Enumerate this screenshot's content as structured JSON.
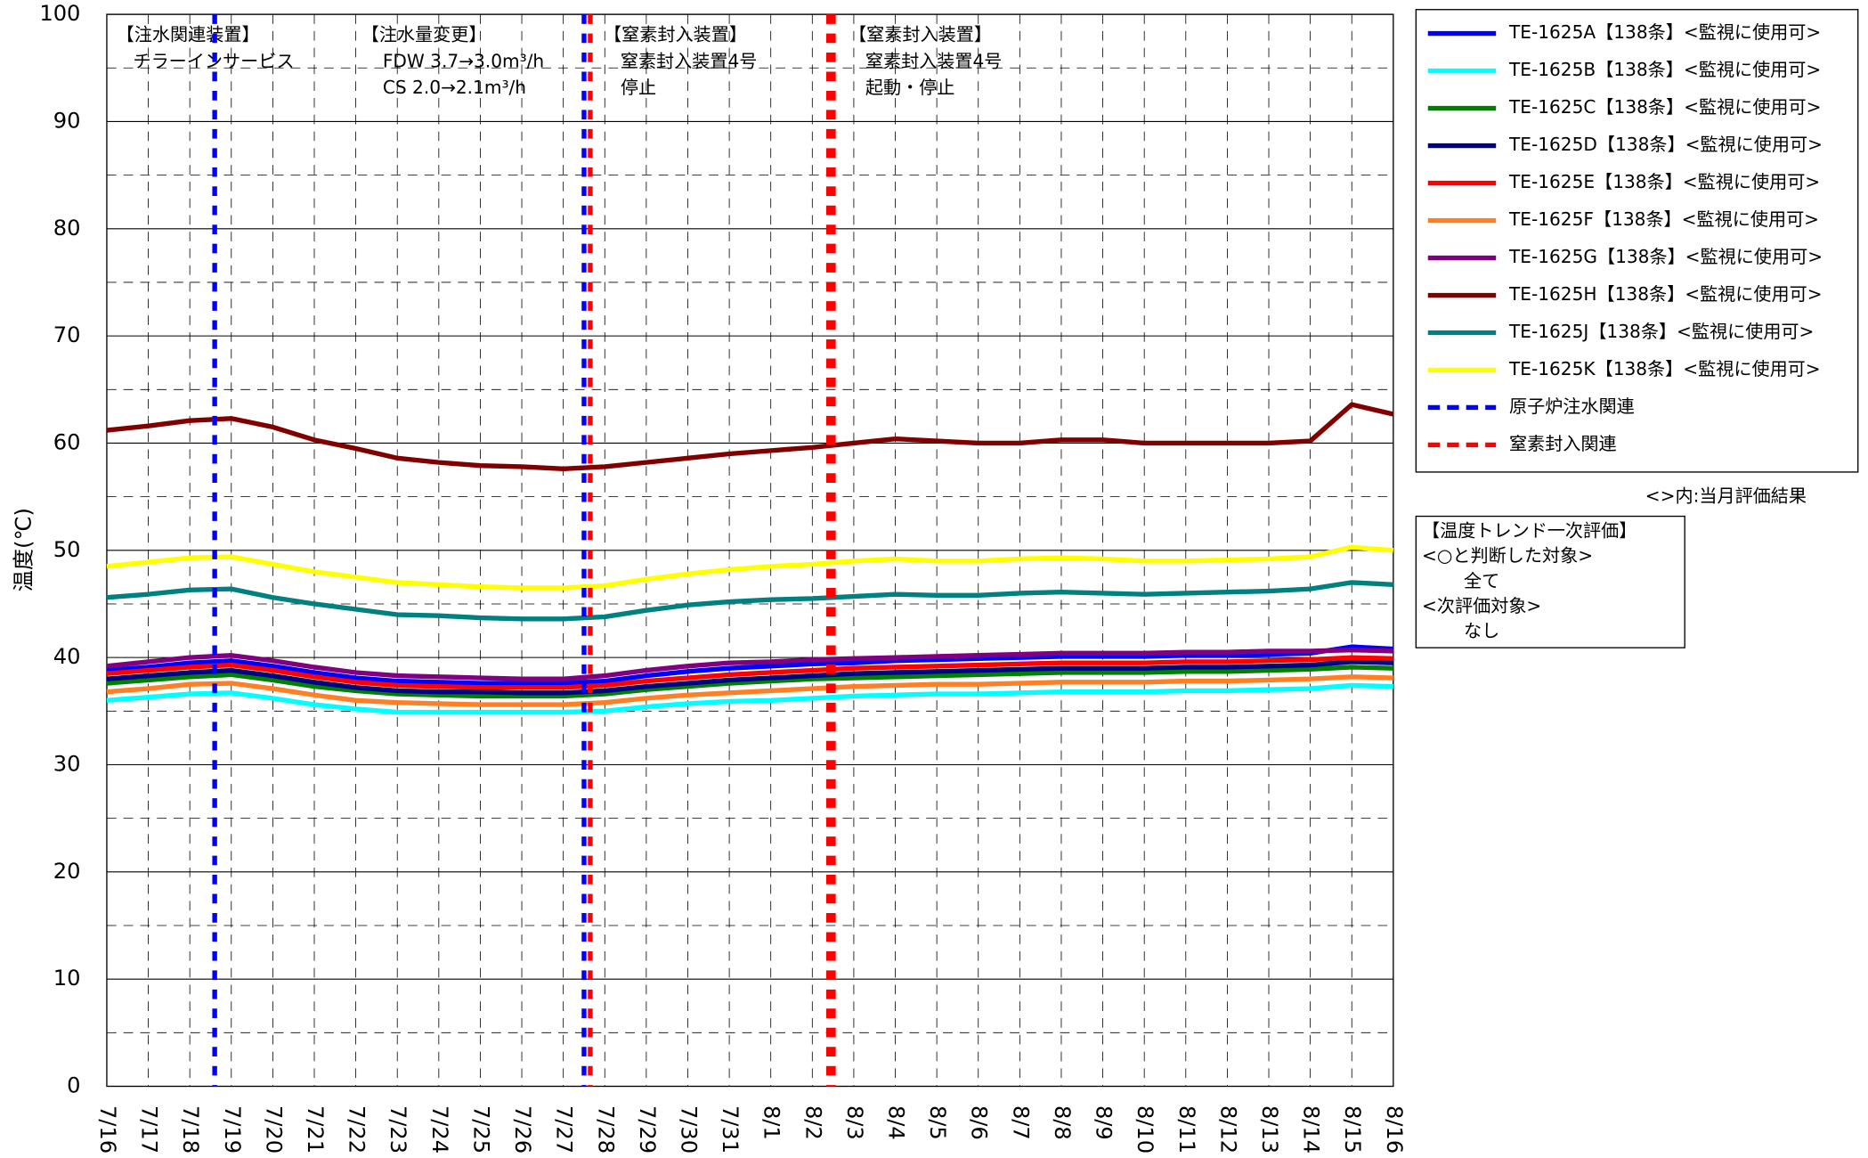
{
  "chart_data": {
    "type": "line",
    "y_label": "温度(℃)",
    "ylim": [
      0,
      100
    ],
    "yticks": [
      0,
      10,
      20,
      30,
      40,
      50,
      60,
      70,
      80,
      90,
      100
    ],
    "grid": true,
    "categories": [
      "7/16",
      "7/17",
      "7/18",
      "7/19",
      "7/20",
      "7/21",
      "7/22",
      "7/23",
      "7/24",
      "7/25",
      "7/26",
      "7/27",
      "7/28",
      "7/29",
      "7/30",
      "7/31",
      "8/1",
      "8/2",
      "8/3",
      "8/4",
      "8/5",
      "8/6",
      "8/7",
      "8/8",
      "8/9",
      "8/10",
      "8/11",
      "8/12",
      "8/13",
      "8/14",
      "8/15",
      "8/16"
    ],
    "series": [
      {
        "name": "TE-1625A【138条】<監視に使用可>",
        "color": "#0000ff",
        "values": [
          38.8,
          39.1,
          39.5,
          39.7,
          39.2,
          38.6,
          38.1,
          37.8,
          37.7,
          37.6,
          37.6,
          37.6,
          37.8,
          38.3,
          38.7,
          39.0,
          39.2,
          39.4,
          39.5,
          39.7,
          39.8,
          39.9,
          40.0,
          40.1,
          40.1,
          40.1,
          40.2,
          40.2,
          40.3,
          40.4,
          41.0,
          40.8
        ]
      },
      {
        "name": "TE-1625B【138条】<監視に使用可>",
        "color": "#00ffff",
        "values": [
          36.0,
          36.3,
          36.6,
          36.7,
          36.2,
          35.6,
          35.2,
          34.9,
          34.9,
          34.9,
          34.9,
          34.9,
          35.0,
          35.4,
          35.7,
          35.9,
          36.0,
          36.2,
          36.4,
          36.5,
          36.6,
          36.6,
          36.7,
          36.8,
          36.8,
          36.8,
          36.9,
          36.9,
          37.0,
          37.1,
          37.4,
          37.3
        ]
      },
      {
        "name": "TE-1625C【138条】<監視に使用可>",
        "color": "#008000",
        "values": [
          37.6,
          37.9,
          38.2,
          38.4,
          37.9,
          37.3,
          36.9,
          36.6,
          36.5,
          36.4,
          36.4,
          36.4,
          36.6,
          37.0,
          37.3,
          37.6,
          37.8,
          38.0,
          38.1,
          38.2,
          38.3,
          38.4,
          38.5,
          38.6,
          38.6,
          38.6,
          38.7,
          38.7,
          38.8,
          38.9,
          39.1,
          39.0
        ]
      },
      {
        "name": "TE-1625D【138条】<監視に使用可>",
        "color": "#000080",
        "values": [
          38.0,
          38.3,
          38.6,
          38.8,
          38.3,
          37.7,
          37.2,
          36.9,
          36.8,
          36.8,
          36.7,
          36.7,
          36.9,
          37.3,
          37.6,
          37.9,
          38.1,
          38.3,
          38.5,
          38.6,
          38.7,
          38.8,
          38.9,
          39.0,
          39.0,
          39.0,
          39.1,
          39.1,
          39.2,
          39.3,
          39.6,
          39.5
        ]
      },
      {
        "name": "TE-1625E【138条】<監視に使用可>",
        "color": "#ff0000",
        "values": [
          38.5,
          38.8,
          39.1,
          39.3,
          38.8,
          38.2,
          37.7,
          37.4,
          37.3,
          37.2,
          37.2,
          37.2,
          37.4,
          37.8,
          38.1,
          38.4,
          38.6,
          38.8,
          39.0,
          39.1,
          39.2,
          39.3,
          39.4,
          39.5,
          39.5,
          39.5,
          39.6,
          39.6,
          39.7,
          39.8,
          40.0,
          39.9
        ]
      },
      {
        "name": "TE-1625F【138条】<監視に使用可>",
        "color": "#ff7f27",
        "values": [
          36.8,
          37.1,
          37.5,
          37.6,
          37.1,
          36.5,
          36.0,
          35.8,
          35.7,
          35.6,
          35.6,
          35.6,
          35.8,
          36.2,
          36.5,
          36.7,
          36.9,
          37.1,
          37.3,
          37.4,
          37.5,
          37.5,
          37.6,
          37.7,
          37.7,
          37.7,
          37.8,
          37.8,
          37.9,
          38.0,
          38.2,
          38.1
        ]
      },
      {
        "name": "TE-1625G【138条】<監視に使用可>",
        "color": "#800080",
        "values": [
          39.2,
          39.6,
          40.0,
          40.2,
          39.7,
          39.1,
          38.6,
          38.3,
          38.2,
          38.1,
          38.0,
          38.0,
          38.3,
          38.8,
          39.2,
          39.5,
          39.6,
          39.8,
          39.9,
          40.0,
          40.1,
          40.2,
          40.3,
          40.4,
          40.4,
          40.4,
          40.5,
          40.5,
          40.6,
          40.6,
          40.7,
          40.6
        ]
      },
      {
        "name": "TE-1625H【138条】<監視に使用可>",
        "color": "#800000",
        "values": [
          61.2,
          61.6,
          62.1,
          62.3,
          61.5,
          60.3,
          59.5,
          58.6,
          58.2,
          57.9,
          57.8,
          57.6,
          57.8,
          58.2,
          58.6,
          59.0,
          59.3,
          59.6,
          60.0,
          60.4,
          60.2,
          60.0,
          60.0,
          60.3,
          60.3,
          60.0,
          60.0,
          60.0,
          60.0,
          60.2,
          63.6,
          62.7
        ]
      },
      {
        "name": "TE-1625J【138条】<監視に使用可>",
        "color": "#008080",
        "values": [
          45.6,
          45.9,
          46.3,
          46.4,
          45.6,
          45.0,
          44.5,
          44.0,
          43.9,
          43.7,
          43.6,
          43.6,
          43.8,
          44.4,
          44.9,
          45.2,
          45.4,
          45.5,
          45.7,
          45.9,
          45.8,
          45.8,
          46.0,
          46.1,
          46.0,
          45.9,
          46.0,
          46.1,
          46.2,
          46.4,
          47.0,
          46.8
        ]
      },
      {
        "name": "TE-1625K【138条】<監視に使用可>",
        "color": "#ffff00",
        "values": [
          48.5,
          48.9,
          49.3,
          49.4,
          48.7,
          48.0,
          47.5,
          47.0,
          46.8,
          46.6,
          46.5,
          46.5,
          46.7,
          47.3,
          47.8,
          48.2,
          48.5,
          48.7,
          49.0,
          49.2,
          49.0,
          49.0,
          49.2,
          49.3,
          49.2,
          49.0,
          49.0,
          49.1,
          49.2,
          49.4,
          50.3,
          50.0
        ]
      }
    ],
    "event_groups": [
      {
        "name": "原子炉注水関連",
        "color": "#0000ff"
      },
      {
        "name": "窒素封入関連",
        "color": "#ff0000"
      }
    ],
    "events": [
      {
        "x": 2.6,
        "group": 0
      },
      {
        "x": 11.5,
        "group": 0
      },
      {
        "x": 11.65,
        "group": 1
      },
      {
        "x": 17.45,
        "group": 1
      }
    ],
    "annotations": [
      {
        "lines": [
          "【注水関連装置】",
          "チラーインサービス"
        ]
      },
      {
        "lines": [
          "【注水量変更】",
          "FDW  3.7→3.0m³/h",
          "CS    2.0→2.1m³/h"
        ]
      },
      {
        "lines": [
          "【窒素封入装置】",
          "窒素封入装置4号",
          "停止"
        ]
      },
      {
        "lines": [
          "【窒素封入装置】",
          "窒素封入装置4号",
          "起動・停止"
        ]
      }
    ],
    "legend_note": "<>内:当月評価結果",
    "evaluation": [
      "【温度トレンド一次評価】",
      "<○と判断した対象>",
      "全て",
      "<次評価対象>",
      "なし"
    ]
  }
}
